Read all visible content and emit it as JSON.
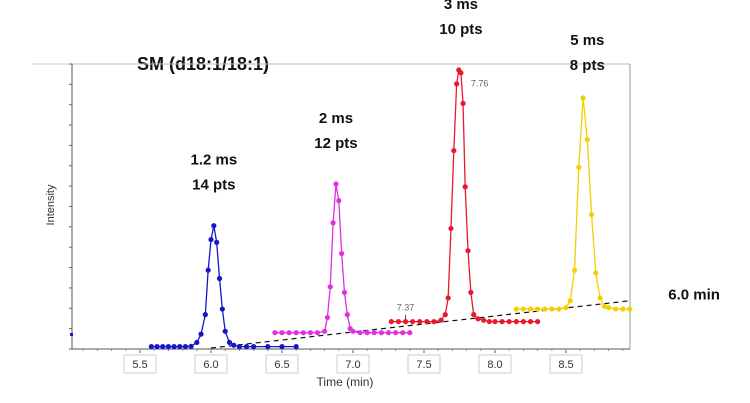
{
  "chart_data": {
    "type": "line",
    "title": "SM (d18:1/18:1)",
    "xlabel": "Time (min)",
    "ylabel": "Intensity",
    "x_ticks": [
      "5.5",
      "6.0",
      "6.5",
      "7.0",
      "7.5",
      "8.0",
      "8.5"
    ],
    "xlim": [
      5.0,
      8.95
    ],
    "ylim": [
      0,
      100
    ],
    "grid": false,
    "series": [
      {
        "color": "#1515cc",
        "x": [
          5.58,
          5.62,
          5.66,
          5.7,
          5.74,
          5.78,
          5.82,
          5.86,
          5.9,
          5.93,
          5.96,
          5.98,
          6.0,
          6.02,
          6.04,
          6.06,
          6.08,
          6.1,
          6.13,
          6.16,
          6.2,
          6.25,
          6.3,
          6.4,
          6.5,
          6.6
        ],
        "y": [
          0.5,
          0.5,
          0.5,
          0.5,
          0.5,
          0.5,
          0.5,
          0.6,
          2,
          5,
          12,
          28,
          39,
          44,
          38,
          25,
          14,
          6,
          2,
          1,
          0.5,
          0.5,
          0.5,
          0.5,
          0.5,
          0.5
        ]
      },
      {
        "color": "#e030e0",
        "x": [
          6.45,
          6.5,
          6.55,
          6.6,
          6.65,
          6.7,
          6.75,
          6.8,
          6.82,
          6.84,
          6.86,
          6.88,
          6.9,
          6.92,
          6.94,
          6.96,
          6.98,
          7.0,
          7.05,
          7.1,
          7.15,
          7.2,
          7.25,
          7.3,
          7.35,
          7.4
        ],
        "y": [
          5.5,
          5.5,
          5.5,
          5.5,
          5.5,
          5.5,
          5.5,
          6,
          11,
          22,
          45,
          59,
          53,
          34,
          20,
          12,
          7,
          6,
          5.5,
          5.5,
          5.5,
          5.5,
          5.5,
          5.5,
          5.5,
          5.5
        ]
      },
      {
        "color": "#e8182e",
        "x": [
          7.27,
          7.32,
          7.37,
          7.42,
          7.47,
          7.52,
          7.57,
          7.62,
          7.65,
          7.67,
          7.69,
          7.71,
          7.73,
          7.745,
          7.76,
          7.775,
          7.79,
          7.81,
          7.83,
          7.85,
          7.88,
          7.92,
          7.96,
          8.0,
          8.05,
          8.1,
          8.15,
          8.2,
          8.25,
          8.3
        ],
        "y": [
          9.5,
          9.5,
          9.5,
          9.5,
          9.5,
          9.5,
          9.5,
          10,
          12,
          18,
          43,
          71,
          95,
          100,
          99,
          88,
          58,
          35,
          20,
          12,
          10.5,
          10,
          9.5,
          9.5,
          9.5,
          9.5,
          9.5,
          9.5,
          9.5,
          9.5
        ]
      },
      {
        "color": "#f5d000",
        "x": [
          8.15,
          8.2,
          8.25,
          8.3,
          8.35,
          8.4,
          8.45,
          8.5,
          8.53,
          8.56,
          8.59,
          8.62,
          8.65,
          8.68,
          8.71,
          8.74,
          8.77,
          8.8,
          8.85,
          8.9,
          8.95
        ],
        "y": [
          14,
          14,
          14,
          14,
          14,
          14,
          14,
          14.5,
          17,
          28,
          65,
          90,
          75,
          48,
          27,
          18,
          15,
          14.5,
          14,
          14,
          14
        ]
      }
    ],
    "annotations": [
      {
        "text": "1.2 ms",
        "x": 6.02,
        "y": 66
      },
      {
        "text": "14 pts",
        "x": 6.02,
        "y": 57
      },
      {
        "text": "2 ms",
        "x": 6.88,
        "y": 81
      },
      {
        "text": "12 pts",
        "x": 6.88,
        "y": 72
      },
      {
        "text": "3 ms",
        "x": 7.76,
        "y": 122
      },
      {
        "text": "10 pts",
        "x": 7.76,
        "y": 113
      },
      {
        "text": "5 ms",
        "x": 8.65,
        "y": 109
      },
      {
        "text": "8 pts",
        "x": 8.65,
        "y": 100
      },
      {
        "text": "7.76",
        "x": 7.83,
        "y": 94
      },
      {
        "text": "7.37",
        "x": 7.37,
        "y": 13.5
      },
      {
        "text": "6.0 min",
        "x": 9.22,
        "y": 17.5
      }
    ],
    "baseline_line": {
      "x": [
        6.0,
        8.95
      ],
      "y": [
        0,
        17
      ]
    }
  }
}
